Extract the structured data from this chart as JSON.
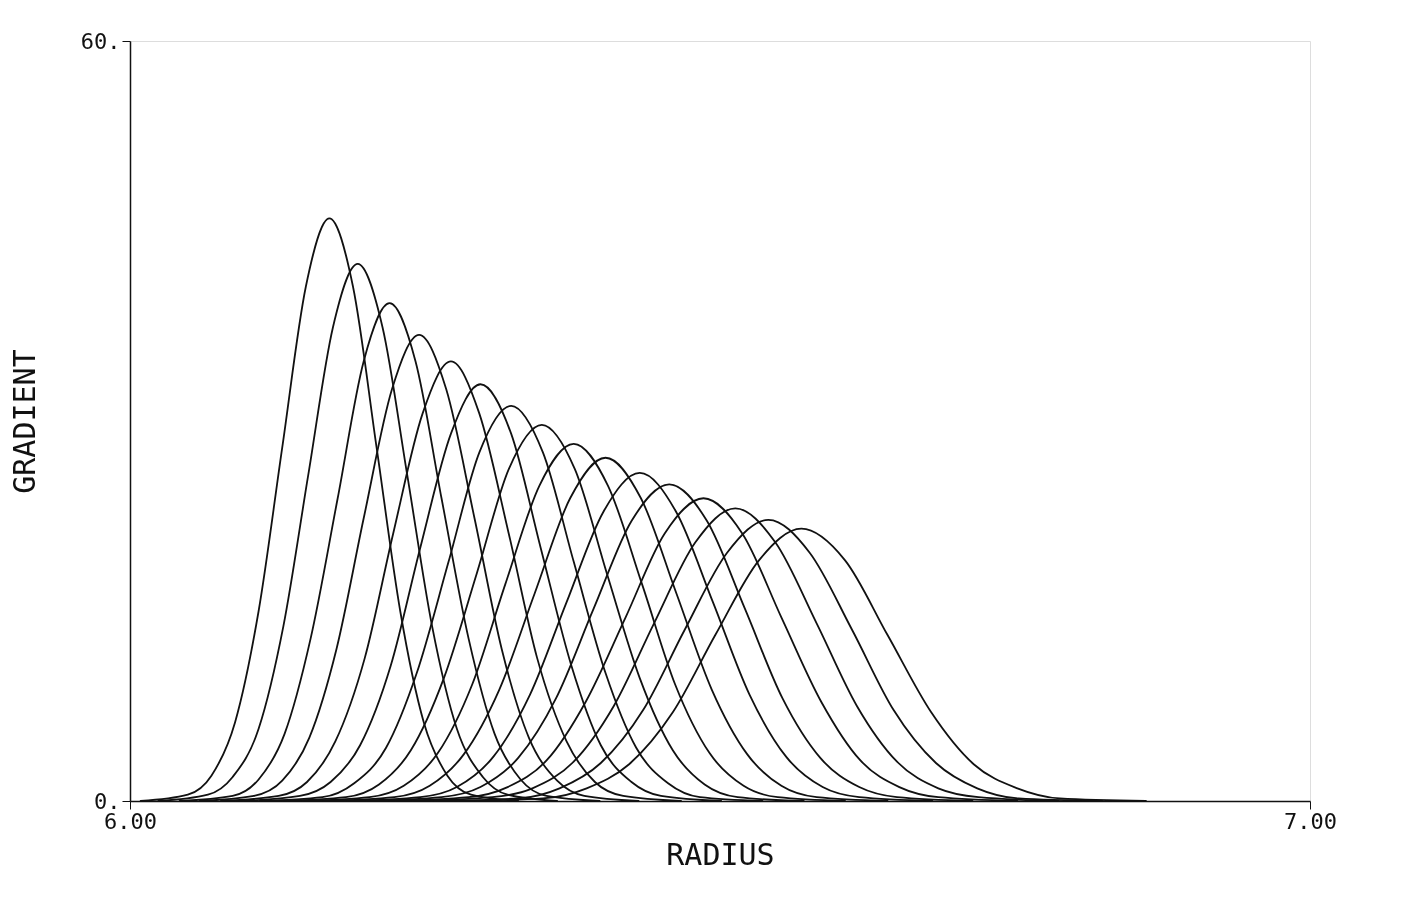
{
  "chart_data": {
    "type": "line",
    "xlabel": "RADIUS",
    "ylabel": "GRADIENT",
    "xlim": [
      6.0,
      7.0
    ],
    "ylim": [
      0,
      60
    ],
    "xticks": [
      {
        "value": 6.0,
        "label": "6.00"
      },
      {
        "value": 7.0,
        "label": "7.00"
      }
    ],
    "yticks": [
      {
        "value": 0,
        "label": "0."
      },
      {
        "value": 60,
        "label": "60."
      }
    ],
    "grid": false,
    "legend": false,
    "marker": "none",
    "line_style": "solid",
    "series": [
      {
        "color": "#111111",
        "x": [
          6.009,
          6.049,
          6.069,
          6.089,
          6.109,
          6.129,
          6.149,
          6.169,
          6.189,
          6.209,
          6.229,
          6.249,
          6.269,
          6.289,
          6.329
        ],
        "values": [
          0,
          0.5,
          2.0,
          6.2,
          15.0,
          27.9,
          40.6,
          46.0,
          40.6,
          27.9,
          15.0,
          6.2,
          2.0,
          0.5,
          0
        ]
      },
      {
        "color": "#111111",
        "x": [
          6.024,
          6.066,
          6.087,
          6.109,
          6.13,
          6.151,
          6.172,
          6.193,
          6.214,
          6.235,
          6.256,
          6.277,
          6.299,
          6.32,
          6.362
        ],
        "values": [
          0,
          0.5,
          1.9,
          5.7,
          13.8,
          25.7,
          37.4,
          42.4,
          37.4,
          25.7,
          13.8,
          5.7,
          1.9,
          0.5,
          0
        ]
      },
      {
        "color": "#111111",
        "x": [
          6.042,
          6.087,
          6.109,
          6.131,
          6.153,
          6.176,
          6.198,
          6.22,
          6.242,
          6.264,
          6.287,
          6.309,
          6.331,
          6.353,
          6.398
        ],
        "values": [
          0,
          0.4,
          1.7,
          5.3,
          12.8,
          23.9,
          34.7,
          39.3,
          34.7,
          23.9,
          12.8,
          5.3,
          1.7,
          0.4,
          0
        ]
      },
      {
        "color": "#111111",
        "x": [
          6.059,
          6.105,
          6.129,
          6.152,
          6.175,
          6.198,
          6.222,
          6.245,
          6.268,
          6.292,
          6.315,
          6.338,
          6.362,
          6.385,
          6.431
        ],
        "values": [
          0,
          0.4,
          1.6,
          5.0,
          12.0,
          22.3,
          32.5,
          36.8,
          32.5,
          22.3,
          12.0,
          5.0,
          1.6,
          0.4,
          0
        ]
      },
      {
        "color": "#111111",
        "x": [
          6.077,
          6.126,
          6.15,
          6.174,
          6.199,
          6.223,
          6.248,
          6.272,
          6.296,
          6.321,
          6.345,
          6.37,
          6.394,
          6.418,
          6.467
        ],
        "values": [
          0,
          0.4,
          1.5,
          4.7,
          11.3,
          21.1,
          30.6,
          34.7,
          30.6,
          21.1,
          11.3,
          4.7,
          1.5,
          0.4,
          0
        ]
      },
      {
        "color": "#111111",
        "x": [
          6.093,
          6.144,
          6.17,
          6.195,
          6.221,
          6.246,
          6.272,
          6.297,
          6.323,
          6.348,
          6.374,
          6.399,
          6.425,
          6.45,
          6.501
        ],
        "values": [
          0,
          0.4,
          1.5,
          4.4,
          10.7,
          20.0,
          29.0,
          32.9,
          29.0,
          20.0,
          10.7,
          4.4,
          1.5,
          0.4,
          0
        ]
      },
      {
        "color": "#111111",
        "x": [
          6.11,
          6.163,
          6.19,
          6.217,
          6.243,
          6.27,
          6.296,
          6.323,
          6.35,
          6.376,
          6.403,
          6.429,
          6.456,
          6.483,
          6.536
        ],
        "values": [
          0,
          0.3,
          1.4,
          4.2,
          10.1,
          18.9,
          27.5,
          31.2,
          27.5,
          18.9,
          10.1,
          4.2,
          1.4,
          0.3,
          0
        ]
      },
      {
        "color": "#111111",
        "x": [
          6.127,
          6.183,
          6.211,
          6.238,
          6.266,
          6.294,
          6.321,
          6.349,
          6.377,
          6.404,
          6.432,
          6.46,
          6.487,
          6.515,
          6.571
        ],
        "values": [
          0,
          0.3,
          1.3,
          4.0,
          9.7,
          18.0,
          26.2,
          29.7,
          26.2,
          18.0,
          9.7,
          4.0,
          1.3,
          0.3,
          0
        ]
      },
      {
        "color": "#111111",
        "x": [
          6.146,
          6.203,
          6.232,
          6.261,
          6.29,
          6.318,
          6.347,
          6.376,
          6.405,
          6.434,
          6.462,
          6.491,
          6.52,
          6.549,
          6.606
        ],
        "values": [
          0,
          0.3,
          1.2,
          3.8,
          9.2,
          17.1,
          24.9,
          28.2,
          24.9,
          17.1,
          9.2,
          3.8,
          1.2,
          0.3,
          0
        ]
      },
      {
        "color": "#111111",
        "x": [
          6.164,
          6.224,
          6.254,
          6.283,
          6.313,
          6.343,
          6.373,
          6.403,
          6.433,
          6.463,
          6.493,
          6.523,
          6.552,
          6.582,
          6.642
        ],
        "values": [
          0,
          0.3,
          1.2,
          3.7,
          8.8,
          16.4,
          23.9,
          27.1,
          23.9,
          16.4,
          8.8,
          3.7,
          1.2,
          0.3,
          0
        ]
      },
      {
        "color": "#111111",
        "x": [
          6.184,
          6.246,
          6.277,
          6.308,
          6.339,
          6.37,
          6.401,
          6.432,
          6.463,
          6.494,
          6.525,
          6.556,
          6.587,
          6.618,
          6.68
        ],
        "values": [
          0,
          0.3,
          1.1,
          3.5,
          8.4,
          15.7,
          22.8,
          25.9,
          22.8,
          15.7,
          8.4,
          3.5,
          1.1,
          0.3,
          0
        ]
      },
      {
        "color": "#111111",
        "x": [
          6.2,
          6.264,
          6.297,
          6.329,
          6.361,
          6.393,
          6.425,
          6.457,
          6.489,
          6.521,
          6.553,
          6.585,
          6.618,
          6.65,
          6.714
        ],
        "values": [
          0,
          0.3,
          1.1,
          3.4,
          8.1,
          15.2,
          22.1,
          25.0,
          22.1,
          15.2,
          8.1,
          3.4,
          1.1,
          0.3,
          0
        ]
      },
      {
        "color": "#111111",
        "x": [
          6.22,
          6.287,
          6.32,
          6.353,
          6.386,
          6.42,
          6.453,
          6.486,
          6.519,
          6.552,
          6.586,
          6.619,
          6.652,
          6.685,
          6.752
        ],
        "values": [
          0,
          0.3,
          1.1,
          3.2,
          7.8,
          14.5,
          21.1,
          23.9,
          21.1,
          14.5,
          7.8,
          3.2,
          1.1,
          0.3,
          0
        ]
      },
      {
        "color": "#111111",
        "x": [
          6.239,
          6.307,
          6.341,
          6.376,
          6.41,
          6.444,
          6.479,
          6.513,
          6.547,
          6.582,
          6.616,
          6.65,
          6.685,
          6.719,
          6.787
        ],
        "values": [
          0,
          0.3,
          1.0,
          3.1,
          7.5,
          14.0,
          20.4,
          23.1,
          20.4,
          14.0,
          7.5,
          3.1,
          1.0,
          0.3,
          0
        ]
      },
      {
        "color": "#111111",
        "x": [
          6.258,
          6.329,
          6.364,
          6.399,
          6.435,
          6.47,
          6.506,
          6.541,
          6.576,
          6.612,
          6.647,
          6.683,
          6.718,
          6.753,
          6.824
        ],
        "values": [
          0,
          0.2,
          1.0,
          3.0,
          7.2,
          13.5,
          19.6,
          22.2,
          19.6,
          13.5,
          7.2,
          3.0,
          1.0,
          0.2,
          0
        ]
      },
      {
        "color": "#111111",
        "x": [
          6.277,
          6.35,
          6.387,
          6.423,
          6.46,
          6.496,
          6.533,
          6.569,
          6.606,
          6.642,
          6.679,
          6.715,
          6.752,
          6.788,
          6.861
        ],
        "values": [
          0,
          0.2,
          1.0,
          2.9,
          7.0,
          13.1,
          19.0,
          21.5,
          19.0,
          13.1,
          7.0,
          2.9,
          1.0,
          0.2,
          0
        ]
      }
    ]
  }
}
